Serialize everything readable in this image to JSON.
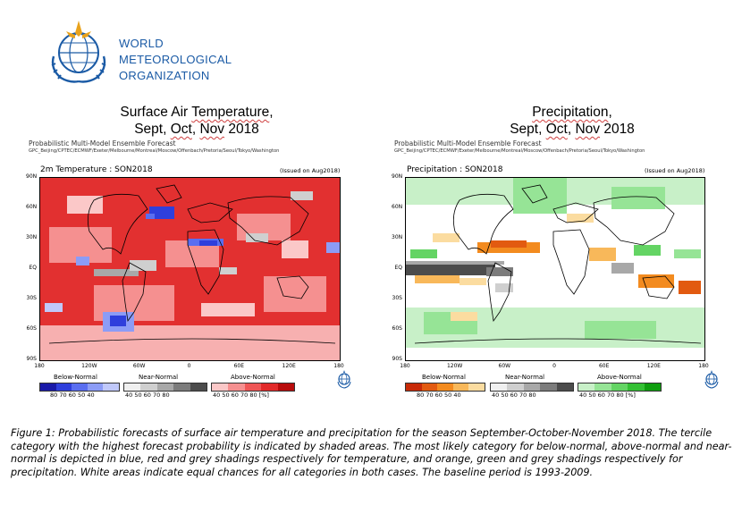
{
  "org": {
    "line1": "WORLD",
    "line2": "METEOROLOGICAL",
    "line3": "ORGANIZATION"
  },
  "left": {
    "title_line1_a": "Surface Air ",
    "title_line1_u": "Temperature",
    "title_line1_b": ",",
    "title_line2_a": "Sept, ",
    "title_line2_u1": "Oct",
    "title_line2_m": ", ",
    "title_line2_u2": "Nov",
    "title_line2_b": " 2018",
    "ens1": "Probabilistic Multi-Model Ensemble Forecast",
    "ens2": "GPC_Beijing/CPTEC/ECMWF/Exeter/Melbourne/Montreal/Moscow/Offenbach/Pretoria/Seoul/Tokyo/Washington",
    "map_label": "2m Temperature : SON2018",
    "issued": "(Issued on Aug2018)",
    "cat_below": "Below-Normal",
    "cat_near": "Near-Normal",
    "cat_above": "Above-Normal",
    "pct_below": "80  70  60  50  40",
    "pct_near": "40  50  60  70  80",
    "pct_above": "40  50  60  70  80  [%]",
    "colors_below": [
      "#1a1aa8",
      "#2f3fdc",
      "#5a6ef0",
      "#8c9cf6",
      "#c0c8fa"
    ],
    "colors_near": [
      "#f0f0f0",
      "#cfcfcf",
      "#a8a8a8",
      "#7c7c7c",
      "#4c4c4c"
    ],
    "colors_above": [
      "#fbc8c8",
      "#f59090",
      "#ef5656",
      "#e22a2a",
      "#b80c0c"
    ]
  },
  "right": {
    "title_line1_u": "Precipitation",
    "title_line1_b": ",",
    "title_line2_a": "Sept, ",
    "title_line2_u1": "Oct",
    "title_line2_m": ", ",
    "title_line2_u2": "Nov",
    "title_line2_b": " 2018",
    "ens1": "Probabilistic Multi-Model Ensemble Forecast",
    "ens2": "GPC_Beijing/CPTEC/ECMWF/Exeter/Melbourne/Montreal/Moscow/Offenbach/Pretoria/Seoul/Tokyo/Washington",
    "map_label": "Precipitation : SON2018",
    "issued": "(Issued on Aug2018)",
    "cat_below": "Below-Normal",
    "cat_near": "Near-Normal",
    "cat_above": "Above-Normal",
    "pct_below": "80  70  60  50  40",
    "pct_near": "40  50  60  70  80",
    "pct_above": "40  50  60  70  80  [%]",
    "colors_below": [
      "#c82a08",
      "#e25a10",
      "#f38b1f",
      "#f8b85a",
      "#fbdca0"
    ],
    "colors_near": [
      "#f0f0f0",
      "#cfcfcf",
      "#a8a8a8",
      "#7c7c7c",
      "#4c4c4c"
    ],
    "colors_above": [
      "#c8f0c8",
      "#96e496",
      "#64d464",
      "#34c034",
      "#0f9e0f"
    ]
  },
  "axes": {
    "lat": [
      "90N",
      "60N",
      "30N",
      "EQ",
      "30S",
      "60S",
      "90S"
    ],
    "lon": [
      "180",
      "120W",
      "60W",
      "0",
      "60E",
      "120E",
      "180"
    ]
  },
  "caption": "Figure 1: Probabilistic forecasts of surface air temperature and precipitation for the season September-October-November 2018.  The tercile category with the highest forecast probability is indicated by shaded areas. The most likely category for below-normal, above-normal and near-normal is depicted in blue, red and grey shadings respectively for temperature, and orange, green and grey shadings respectively for precipitation. White areas indicate equal chances for all categories in both cases. The baseline period is 1993-2009."
}
